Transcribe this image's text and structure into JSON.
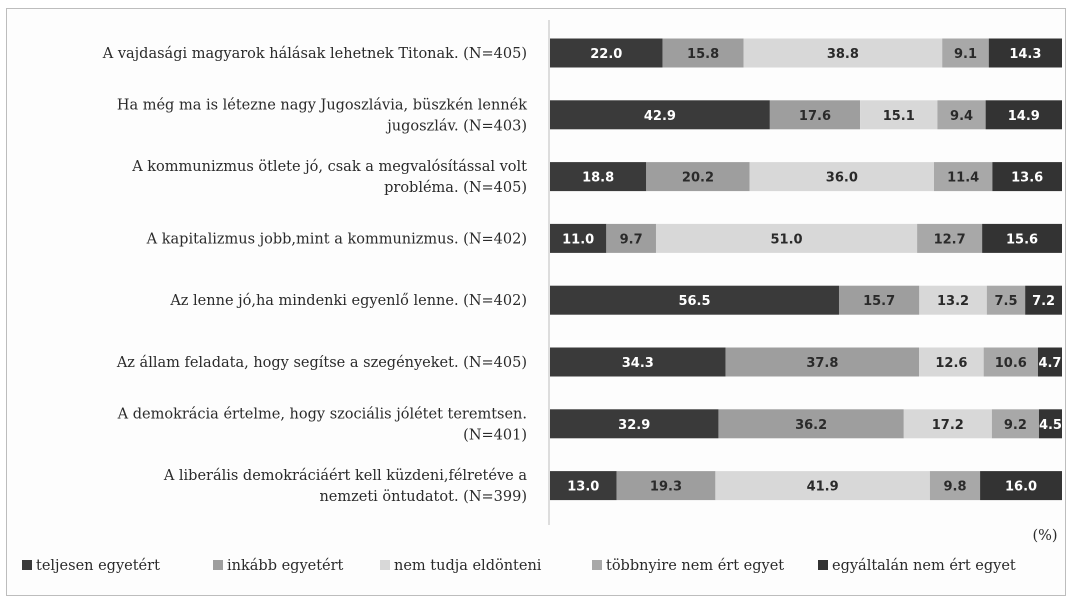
{
  "chart_data": {
    "type": "bar",
    "orientation": "horizontal",
    "stacked": true,
    "percent_stacked": true,
    "unit_label": "(%)",
    "categories": [
      [
        "A vajdasági magyarok hálásak lehetnek Titonak. (N=405)"
      ],
      [
        "Ha még ma is létezne nagy Jugoszlávia, büszkén lennék",
        "jugoszláv. (N=403)"
      ],
      [
        "A kommunizmus ötlete jó, csak a megvalósítással volt",
        "probléma. (N=405)"
      ],
      [
        "A kapitalizmus jobb,mint a kommunizmus. (N=402)"
      ],
      [
        "Az lenne jó,ha mindenki egyenlő lenne. (N=402)"
      ],
      [
        "Az állam feladata, hogy segítse a szegényeket. (N=405)"
      ],
      [
        "A demokrácia értelme, hogy szociális jólétet teremtsen.",
        "(N=401)"
      ],
      [
        "A liberális demokráciáért kell küzdeni,félretéve a",
        "nemzeti öntudatot. (N=399)"
      ]
    ],
    "series": [
      {
        "name": "teljesen egyetért",
        "color": "#3a3a3a",
        "text_color": "#ffffff",
        "values": [
          22.0,
          42.9,
          18.8,
          11.0,
          56.5,
          34.3,
          32.9,
          13.0
        ]
      },
      {
        "name": "inkább egyetért",
        "color": "#9e9e9e",
        "text_color": "#2a2a2a",
        "values": [
          15.8,
          17.6,
          20.2,
          9.7,
          15.7,
          37.8,
          36.2,
          19.3
        ]
      },
      {
        "name": "nem tudja eldönteni",
        "color": "#d8d8d8",
        "text_color": "#2a2a2a",
        "values": [
          38.8,
          15.1,
          36.0,
          51.0,
          13.2,
          12.6,
          17.2,
          41.9
        ]
      },
      {
        "name": "többnyire nem ért egyet",
        "color": "#a8a8a8",
        "text_color": "#2a2a2a",
        "values": [
          9.1,
          9.4,
          11.4,
          12.7,
          7.5,
          10.6,
          9.2,
          9.8
        ]
      },
      {
        "name": "egyáltalán nem ért egyet",
        "color": "#333333",
        "text_color": "#ffffff",
        "values": [
          14.3,
          14.9,
          13.6,
          15.6,
          7.2,
          4.7,
          4.5,
          16.0
        ]
      }
    ],
    "xlim": [
      0,
      100
    ],
    "legend_position": "bottom",
    "grid": false
  }
}
